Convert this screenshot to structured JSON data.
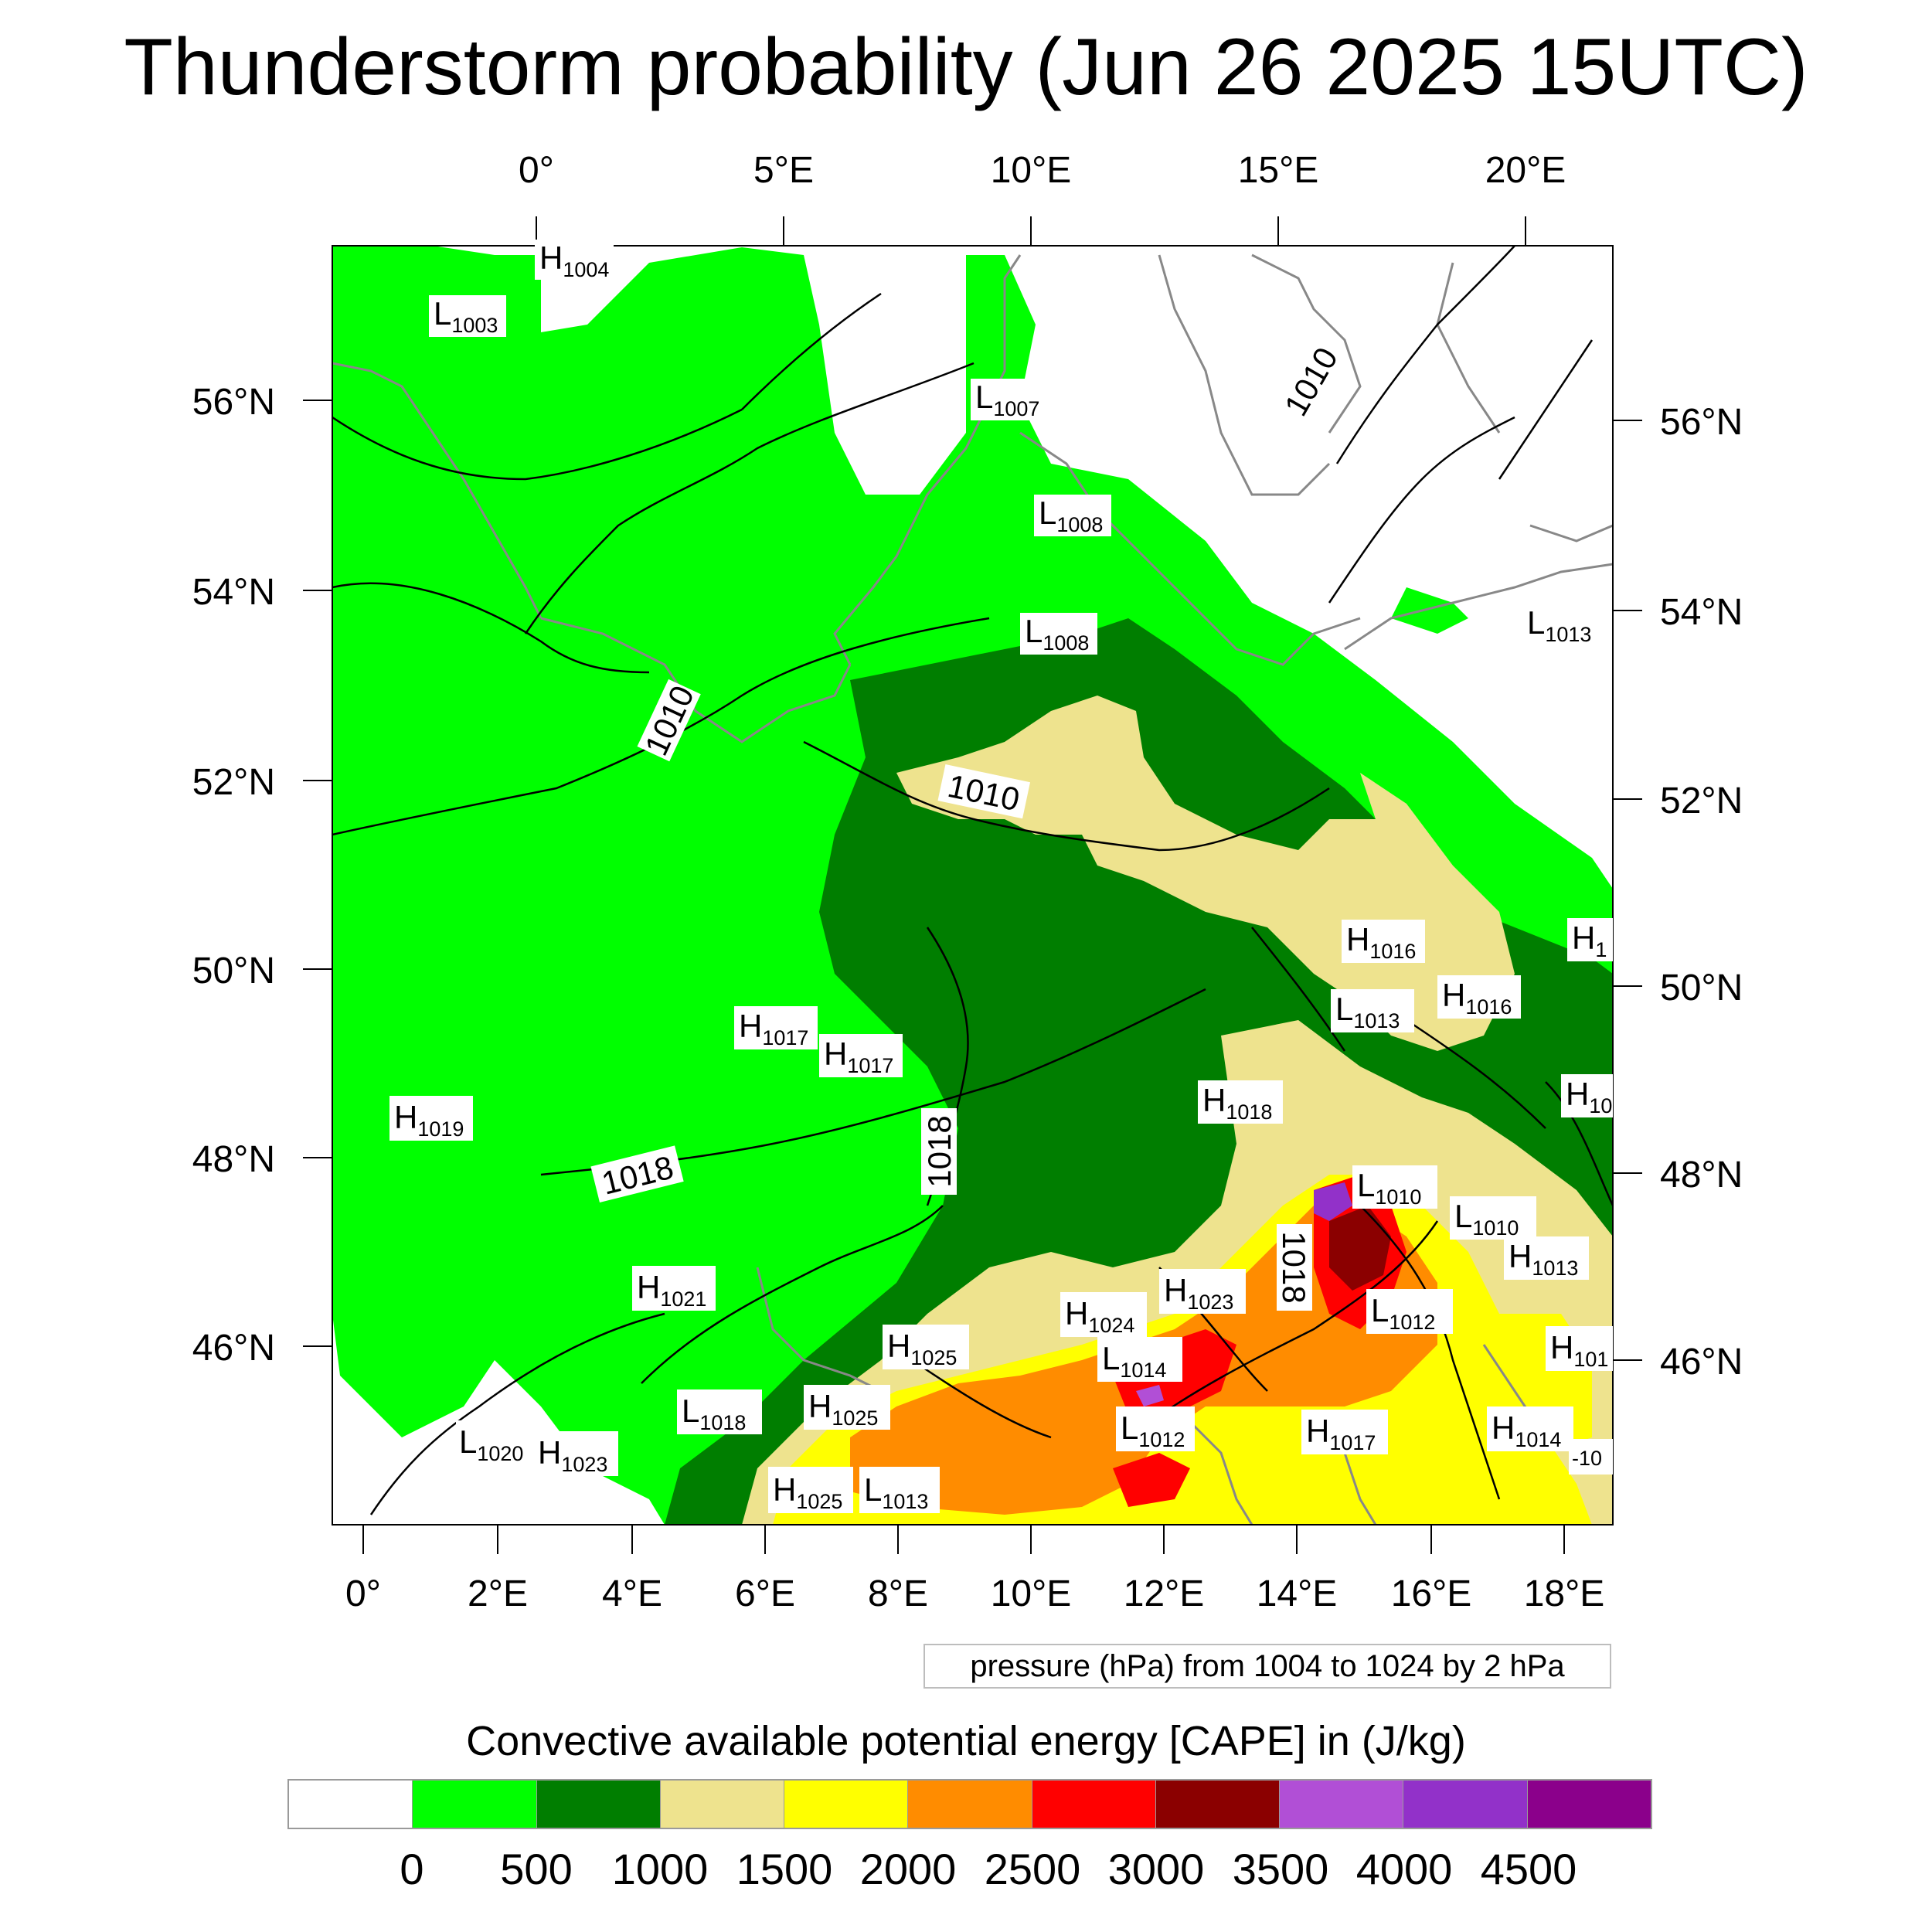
{
  "title": "Thunderstorm probability (Jun 26 2025 15UTC)",
  "map": {
    "top_lon_labels": [
      "0°",
      "5°E",
      "10°E",
      "15°E",
      "20°E"
    ],
    "bottom_lon_labels": [
      "0°",
      "2°E",
      "4°E",
      "6°E",
      "8°E",
      "10°E",
      "12°E",
      "14°E",
      "16°E",
      "18°E"
    ],
    "left_lat_labels": [
      "56°N",
      "54°N",
      "52°N",
      "50°N",
      "48°N",
      "46°N"
    ],
    "right_lat_labels": [
      "56°N",
      "54°N",
      "52°N",
      "50°N",
      "48°N",
      "46°N"
    ],
    "isobar_labels": [
      "1010",
      "1010",
      "1010",
      "1018",
      "1018",
      "1018"
    ],
    "pressure_centers": [
      {
        "type": "H",
        "value": "1004"
      },
      {
        "type": "L",
        "value": "1003"
      },
      {
        "type": "L",
        "value": "1007"
      },
      {
        "type": "L",
        "value": "1008"
      },
      {
        "type": "L",
        "value": "1008"
      },
      {
        "type": "L",
        "value": "1013"
      },
      {
        "type": "H",
        "value": "1016"
      },
      {
        "type": "H",
        "value": "1"
      },
      {
        "type": "L",
        "value": "1013"
      },
      {
        "type": "H",
        "value": "1016"
      },
      {
        "type": "H",
        "value": "1017"
      },
      {
        "type": "H",
        "value": "1017"
      },
      {
        "type": "H",
        "value": "1019"
      },
      {
        "type": "H",
        "value": "1018"
      },
      {
        "type": "H",
        "value": "10"
      },
      {
        "type": "L",
        "value": "1010"
      },
      {
        "type": "L",
        "value": "1010"
      },
      {
        "type": "H",
        "value": "1013"
      },
      {
        "type": "H",
        "value": "1021"
      },
      {
        "type": "H",
        "value": "1023"
      },
      {
        "type": "H",
        "value": "1024"
      },
      {
        "type": "L",
        "value": "1012"
      },
      {
        "type": "H",
        "value": "101"
      },
      {
        "type": "H",
        "value": "1025"
      },
      {
        "type": "L",
        "value": "1014"
      },
      {
        "type": "L",
        "value": "1018"
      },
      {
        "type": "H",
        "value": "1025"
      },
      {
        "type": "L",
        "value": "1012"
      },
      {
        "type": "H",
        "value": "1017"
      },
      {
        "type": "H",
        "value": "1014"
      },
      {
        "type": "L",
        "value": "1020"
      },
      {
        "type": "H",
        "value": "1023"
      },
      {
        "type": "H",
        "value": "1025"
      },
      {
        "type": "L",
        "value": "1013"
      }
    ],
    "cut_label": "-10",
    "pressure_note": "pressure (hPa) from 1004 to 1024 by 2 hPa",
    "cape_colors": {
      "0": "#00ff00",
      "500": "#007e00",
      "1000": "#eee38e",
      "1500": "#ffff00",
      "2000": "#ff8c00",
      "2500": "#ff0000",
      "3000": "#8b0000",
      "3500": "#b14fd6",
      "4000": "#9231c9",
      "4500": "#8b008b"
    }
  },
  "colorbar": {
    "title": "Convective available potential energy [CAPE] in (J/kg)",
    "colors": [
      "#ffffff",
      "#00ff00",
      "#007e00",
      "#eee38e",
      "#ffff00",
      "#ff8c00",
      "#ff0000",
      "#8b0000",
      "#b14fd6",
      "#9231c9",
      "#8b008b"
    ],
    "ticks": [
      "0",
      "500",
      "1000",
      "1500",
      "2000",
      "2500",
      "3000",
      "3500",
      "4000",
      "4500"
    ]
  }
}
